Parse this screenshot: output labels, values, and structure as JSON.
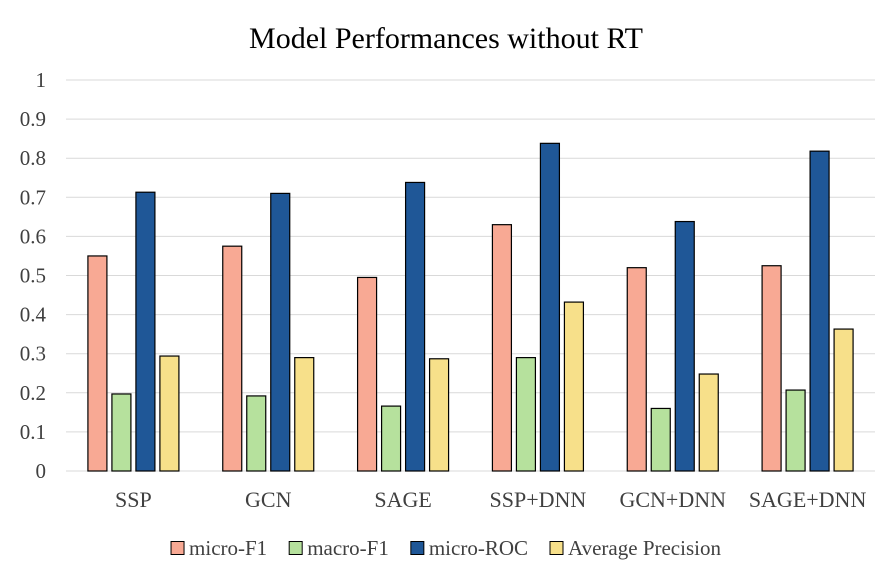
{
  "chart_data": {
    "type": "bar",
    "title": "Model Performances without RT",
    "xlabel": "",
    "ylabel": "",
    "ylim": [
      0,
      1
    ],
    "yticks": [
      0,
      0.1,
      0.2,
      0.3,
      0.4,
      0.5,
      0.6,
      0.7,
      0.8,
      0.9,
      1
    ],
    "ytick_labels": [
      "0",
      "0.1",
      "0.2",
      "0.3",
      "0.4",
      "0.5",
      "0.6",
      "0.7",
      "0.8",
      "0.9",
      "1"
    ],
    "grid": "horizontal",
    "legend_position": "bottom",
    "categories": [
      "SSP",
      "GCN",
      "SAGE",
      "SSP+DNN",
      "GCN+DNN",
      "SAGE+DNN"
    ],
    "series": [
      {
        "name": "micro-F1",
        "color": "#f8a994",
        "values": [
          0.55,
          0.575,
          0.495,
          0.63,
          0.52,
          0.525
        ]
      },
      {
        "name": "macro-F1",
        "color": "#b6e19d",
        "values": [
          0.197,
          0.192,
          0.166,
          0.29,
          0.16,
          0.207
        ]
      },
      {
        "name": "micro-ROC",
        "color": "#1f5797",
        "values": [
          0.713,
          0.71,
          0.738,
          0.838,
          0.638,
          0.818
        ]
      },
      {
        "name": "Average Precision",
        "color": "#f7e08a",
        "values": [
          0.294,
          0.29,
          0.287,
          0.432,
          0.248,
          0.363
        ]
      }
    ]
  }
}
